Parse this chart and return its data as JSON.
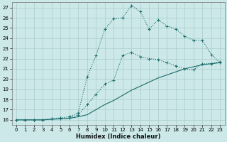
{
  "xlabel": "Humidex (Indice chaleur)",
  "bg_color": "#cce8e8",
  "grid_color": "#aacccc",
  "line_color": "#1a6b6b",
  "xlim": [
    -0.5,
    23.5
  ],
  "ylim": [
    15.5,
    27.5
  ],
  "xticks": [
    0,
    1,
    2,
    3,
    4,
    5,
    6,
    7,
    8,
    9,
    10,
    11,
    12,
    13,
    14,
    15,
    16,
    17,
    18,
    19,
    20,
    21,
    22,
    23
  ],
  "yticks": [
    16,
    17,
    18,
    19,
    20,
    21,
    22,
    23,
    24,
    25,
    26,
    27
  ],
  "line_upper_x": [
    0,
    1,
    2,
    3,
    4,
    5,
    6,
    7,
    8,
    9,
    10,
    11,
    12,
    13,
    14,
    15,
    16,
    17,
    18,
    19,
    20,
    21,
    22,
    23
  ],
  "line_upper_y": [
    16,
    16,
    16,
    16,
    16.1,
    16.2,
    16.3,
    16.7,
    20.2,
    22.3,
    24.9,
    25.9,
    26.0,
    27.2,
    26.6,
    24.9,
    25.8,
    25.2,
    24.9,
    24.2,
    23.8,
    23.8,
    22.4,
    21.6
  ],
  "line_mid_x": [
    0,
    1,
    2,
    3,
    4,
    5,
    6,
    7,
    8,
    9,
    10,
    11,
    12,
    13,
    14,
    15,
    16,
    17,
    18,
    19,
    20,
    21,
    22,
    23
  ],
  "line_mid_y": [
    16,
    16,
    16,
    16,
    16.1,
    16.1,
    16.2,
    16.5,
    17.5,
    18.5,
    19.5,
    19.9,
    22.3,
    22.6,
    22.2,
    22.0,
    21.9,
    21.6,
    21.3,
    21.0,
    20.9,
    21.5,
    21.5,
    21.7
  ],
  "line_low_x": [
    0,
    1,
    2,
    3,
    4,
    5,
    6,
    7,
    8,
    9,
    10,
    11,
    12,
    13,
    14,
    15,
    16,
    17,
    18,
    19,
    20,
    21,
    22,
    23
  ],
  "line_low_y": [
    16,
    16,
    16,
    16,
    16.05,
    16.1,
    16.15,
    16.3,
    16.5,
    17.0,
    17.5,
    17.9,
    18.4,
    18.9,
    19.3,
    19.7,
    20.1,
    20.4,
    20.7,
    21.0,
    21.2,
    21.4,
    21.5,
    21.6
  ]
}
